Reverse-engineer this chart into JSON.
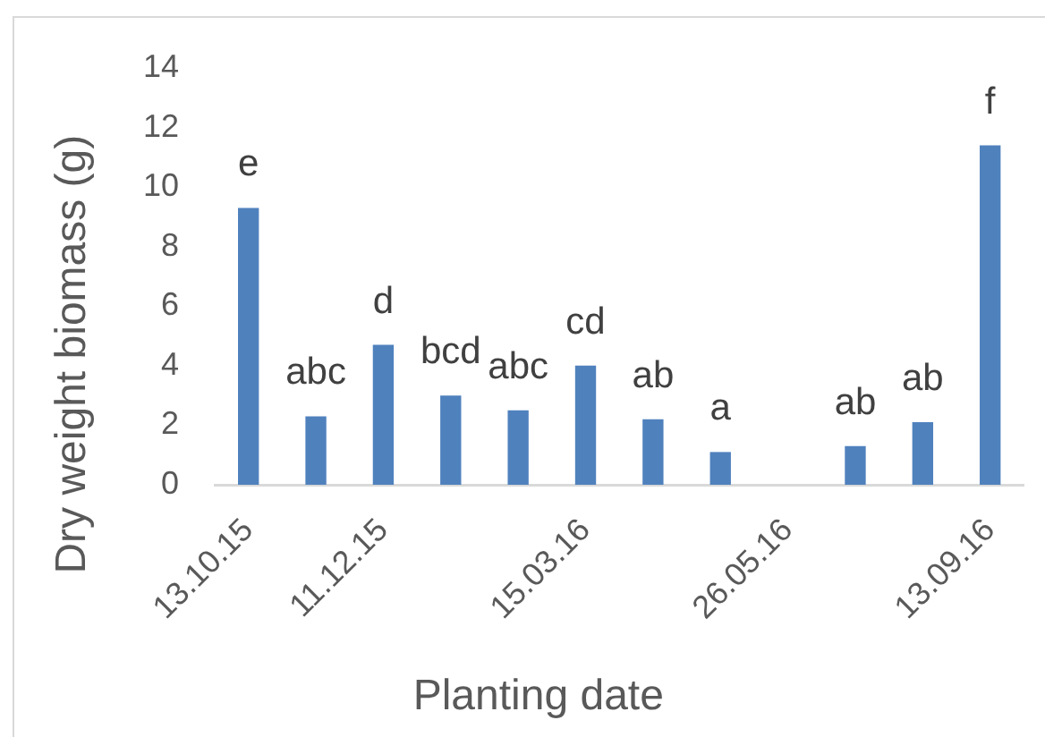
{
  "chart_data": {
    "type": "bar",
    "xlabel": "Planting date",
    "ylabel": "Dry weight biomass (g)",
    "categories": [
      "13.10.15",
      null,
      "11.12.15",
      null,
      null,
      "15.03.16",
      null,
      null,
      "26.05.16",
      null,
      null,
      "13.09.16"
    ],
    "values": [
      9.3,
      2.3,
      4.7,
      3.0,
      2.5,
      4.0,
      2.2,
      1.1,
      null,
      1.3,
      2.1,
      11.4
    ],
    "value_labels": [
      "e",
      "abc",
      "d",
      "bcd",
      "abc",
      "cd",
      "ab",
      "a",
      null,
      "ab",
      "ab",
      "f"
    ],
    "color": "#4f81bd",
    "ylim": [
      0,
      14
    ],
    "yticks": [
      0,
      2,
      4,
      6,
      8,
      10,
      12,
      14
    ],
    "grid": false
  }
}
